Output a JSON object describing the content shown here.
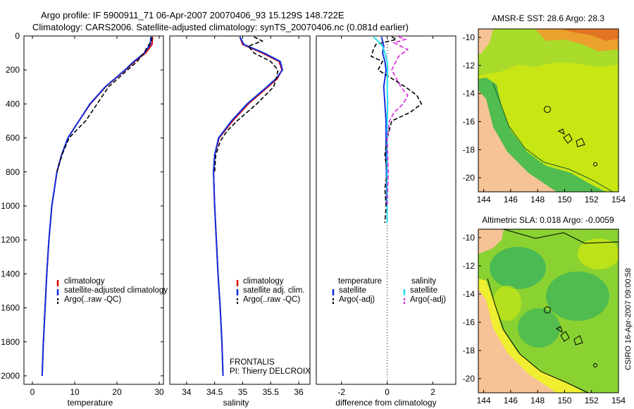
{
  "header": {
    "line1": "Argo profile: IF 5900911_71 06-Apr-2007 20070406_93 15.129S 148.722E",
    "line2": "Climatology: CARS2006. Satellite-adjusted climatology: synTS_20070406.nc (0.081d earlier)"
  },
  "side_label": "CSIRO 16-Apr-2007 09:00:58",
  "maps": {
    "sst_title": "AMSR-E SST: 28.6 Argo: 28.3",
    "sla_title": "Altimetric SLA: 0.018 Argo: -0.0059",
    "lon_ticks": [
      "144",
      "146",
      "148",
      "150",
      "152",
      "154"
    ],
    "lat_ticks": [
      "-10",
      "-12",
      "-14",
      "-16",
      "-18",
      "-20"
    ],
    "lon_values": [
      144,
      146,
      148,
      150,
      152,
      154
    ],
    "lat_values": [
      -10,
      -12,
      -14,
      -16,
      -18,
      -20
    ],
    "lon_range": [
      143.6,
      154
    ],
    "lat_range": [
      -21,
      -9.4
    ],
    "argo_lon": 148.722,
    "argo_lat": -15.129
  },
  "colors": {
    "climatology": "#dd0000",
    "satellite": "#1030e0",
    "argo": "#000000",
    "sal_satellite": "#22ddee",
    "sal_argo": "#dd22dd",
    "land": "#f5c396",
    "sst_ocean": "#c8e614",
    "sla_ocean": "#8ad232",
    "sla_shelf": "#f0ee30"
  },
  "chart_data": [
    {
      "type": "line",
      "panel": "temperature",
      "xlabel": "temperature",
      "ylabel": "",
      "xlim": [
        -2,
        31
      ],
      "ylim": [
        2050,
        0
      ],
      "xticks": [
        0,
        10,
        20,
        30
      ],
      "yticks": [
        0,
        200,
        400,
        600,
        800,
        1000,
        1200,
        1400,
        1600,
        1800,
        2000
      ],
      "legend": [
        "climatology",
        "satellite-adjusted climatology",
        "Argo(..raw -QC)"
      ],
      "series": [
        {
          "name": "climatology",
          "depth": [
            5,
            50,
            100,
            150,
            200,
            300,
            400,
            500,
            600,
            700,
            800,
            1000,
            1200,
            1400,
            1600,
            1800,
            2000
          ],
          "values": [
            28.4,
            28.3,
            26.8,
            24.2,
            22.0,
            17.3,
            13.7,
            11.0,
            8.4,
            6.9,
            5.8,
            4.6,
            3.9,
            3.4,
            3.0,
            2.6,
            2.3
          ]
        },
        {
          "name": "satellite-adjusted climatology",
          "depth": [
            5,
            50,
            100,
            150,
            200,
            300,
            400,
            500,
            600,
            700,
            800,
            1000,
            1200,
            1400,
            1600,
            1800,
            2000
          ],
          "values": [
            28.0,
            27.9,
            26.5,
            24.0,
            21.9,
            17.2,
            13.6,
            11.0,
            8.4,
            6.9,
            5.8,
            4.6,
            3.9,
            3.4,
            3.0,
            2.6,
            2.3
          ]
        },
        {
          "name": "Argo(..raw -QC)",
          "depth": [
            5,
            30,
            60,
            100,
            150,
            200,
            300,
            400,
            500,
            550,
            600,
            700,
            800
          ],
          "values": [
            28.3,
            28.2,
            27.3,
            26.4,
            24.8,
            22.5,
            18.0,
            15.3,
            12.6,
            10.6,
            8.7,
            7.0,
            5.8
          ]
        }
      ]
    },
    {
      "type": "line",
      "panel": "salinity",
      "xlabel": "salinity",
      "xlim": [
        33.7,
        36.2
      ],
      "ylim": [
        2050,
        0
      ],
      "xticks": [
        34,
        34.5,
        35,
        35.5,
        36
      ],
      "legend": [
        "climatology",
        "satellite adj. clim.",
        "Argo(..raw -QC)"
      ],
      "series": [
        {
          "name": "climatology",
          "depth": [
            5,
            50,
            100,
            150,
            200,
            250,
            300,
            400,
            500,
            600,
            700,
            800,
            1000,
            1200,
            1400,
            1600,
            1800,
            2000
          ],
          "values": [
            34.95,
            35.0,
            35.35,
            35.65,
            35.7,
            35.62,
            35.45,
            35.1,
            34.82,
            34.58,
            34.5,
            34.48,
            34.5,
            34.53,
            34.56,
            34.6,
            34.63,
            34.65
          ]
        },
        {
          "name": "satellite adj. clim.",
          "depth": [
            5,
            50,
            100,
            150,
            200,
            250,
            300,
            400,
            500,
            600,
            700,
            800,
            1000,
            1200,
            1400,
            1600,
            1800,
            2000
          ],
          "values": [
            34.95,
            35.02,
            35.38,
            35.67,
            35.71,
            35.6,
            35.43,
            35.08,
            34.8,
            34.57,
            34.5,
            34.48,
            34.5,
            34.53,
            34.56,
            34.6,
            34.63,
            34.65
          ]
        },
        {
          "name": "Argo(..raw -QC)",
          "depth": [
            5,
            30,
            60,
            100,
            150,
            200,
            250,
            300,
            400,
            500,
            560,
            620,
            700,
            800
          ],
          "values": [
            35.2,
            35.35,
            35.1,
            35.2,
            35.5,
            35.63,
            35.6,
            35.55,
            35.25,
            34.9,
            34.72,
            34.6,
            34.52,
            34.5
          ]
        }
      ]
    },
    {
      "type": "line",
      "panel": "difference",
      "xlabel": "difference from climatology",
      "xlim": [
        -3.1,
        3.0
      ],
      "ylim": [
        2050,
        0
      ],
      "xticks": [
        -2,
        0,
        2
      ],
      "legend_groups": [
        {
          "title": "temperature",
          "entries": [
            "satellite",
            "Argo(-adj)"
          ]
        },
        {
          "title": "salinity",
          "entries": [
            "satellite",
            "Argo(-adj)"
          ]
        }
      ],
      "series": [
        {
          "name": "temperature satellite",
          "depth": [
            5,
            30,
            60,
            100,
            150,
            200,
            300,
            400,
            500,
            700,
            900,
            1000
          ],
          "values": [
            -0.25,
            -0.2,
            -0.15,
            -0.2,
            -0.1,
            -0.05,
            -0.15,
            -0.1,
            -0.05,
            -0.05,
            -0.02,
            -0.03
          ]
        },
        {
          "name": "temperature Argo(-adj)",
          "depth": [
            5,
            20,
            50,
            80,
            120,
            150,
            200,
            250,
            300,
            350,
            400,
            450,
            500,
            600,
            700,
            800,
            900,
            1000,
            1100
          ],
          "values": [
            0.2,
            0.4,
            -0.5,
            -0.6,
            -0.7,
            -0.2,
            -0.4,
            0.2,
            0.8,
            1.3,
            1.5,
            1.0,
            0.2,
            0.0,
            -0.1,
            0.0,
            -0.1,
            -0.05,
            -0.1
          ]
        },
        {
          "name": "salinity satellite",
          "depth": [
            5,
            30,
            60,
            100,
            150,
            200,
            300,
            400,
            500,
            700,
            900,
            1100
          ],
          "values": [
            -0.6,
            -0.4,
            -0.2,
            -0.1,
            0.0,
            0.02,
            0.0,
            0.02,
            0.0,
            0.0,
            0.0,
            0.0
          ]
        },
        {
          "name": "salinity Argo(-adj)",
          "depth": [
            5,
            20,
            40,
            80,
            120,
            200,
            300,
            350,
            400,
            450,
            500,
            600,
            800,
            1000
          ],
          "values": [
            0.5,
            0.8,
            0.3,
            0.9,
            0.5,
            0.2,
            0.6,
            0.9,
            0.7,
            0.3,
            0.1,
            0.0,
            0.05,
            0.0
          ]
        }
      ]
    }
  ],
  "annotation": {
    "line1": "FRONTALIS",
    "line2": "PI: Thierry DELCROIX"
  }
}
